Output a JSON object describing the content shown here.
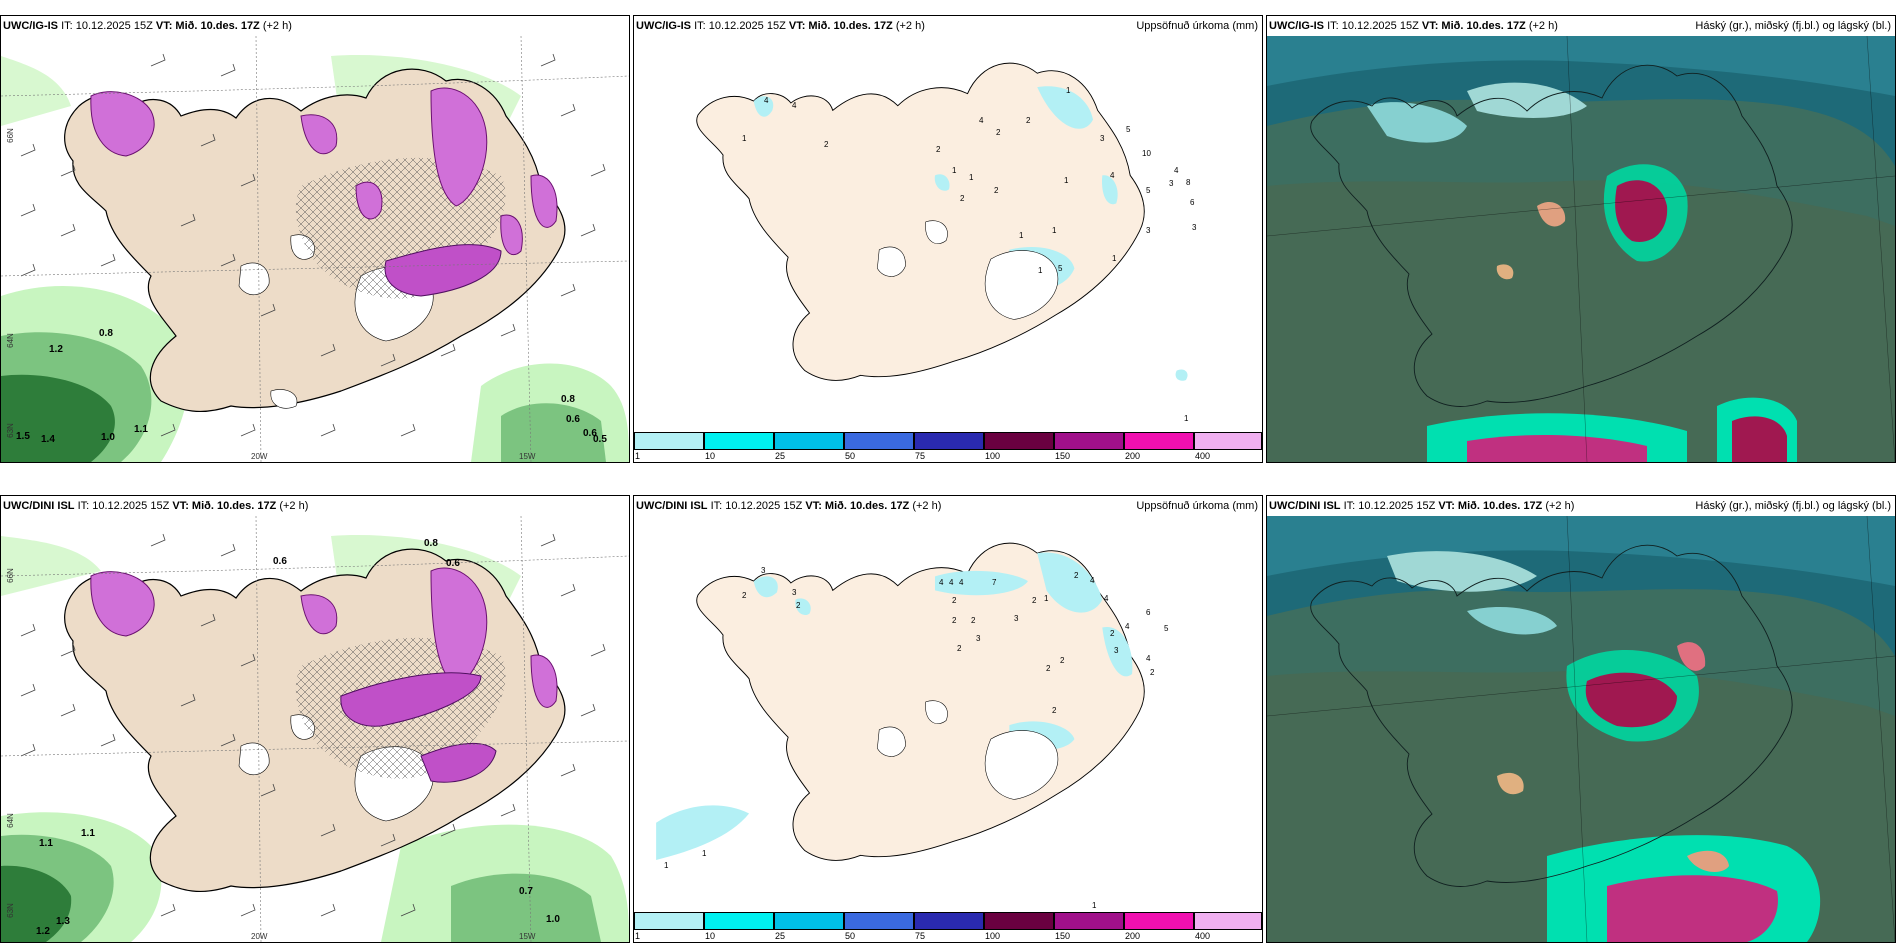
{
  "rows": [
    {
      "model": "UWC/IG-IS",
      "panels": [
        {
          "kind": "wind-precip",
          "title_model": "UWC/IG-IS",
          "title_it": "IT: 10.12.2025 15Z",
          "title_vt": "VT: Mið. 10.des. 17Z",
          "title_lead": "(+2 h)",
          "right_title": ""
        },
        {
          "kind": "accum",
          "title_model": "UWC/IG-IS",
          "title_it": "IT: 10.12.2025 15Z",
          "title_vt": "VT: Mið. 10.des. 17Z",
          "title_lead": "(+2 h)",
          "right_title": "Uppsöfnuð úrkoma (mm)"
        },
        {
          "kind": "cloud",
          "title_model": "UWC/IG-IS",
          "title_it": "IT: 10.12.2025 15Z",
          "title_vt": "VT: Mið. 10.des. 17Z",
          "title_lead": "(+2 h)",
          "right_title": "Háský (gr.), miðský (fj.bl.) og lágský (bl.)"
        }
      ],
      "accum_labels": [
        "4",
        "4",
        "1",
        "2",
        "2",
        "1",
        "1",
        "2",
        "2",
        "4",
        "2",
        "2",
        "1",
        "1",
        "3",
        "4",
        "5",
        "10",
        "3",
        "4",
        "8",
        "5",
        "6",
        "3",
        "3",
        "1",
        "1",
        "1",
        "1",
        "5",
        "1"
      ]
    },
    {
      "model": "UWC/DINI ISL",
      "panels": [
        {
          "kind": "wind-precip",
          "title_model": "UWC/DINI ISL",
          "title_it": "IT: 10.12.2025 15Z",
          "title_vt": "VT: Mið. 10.des. 17Z",
          "title_lead": "(+2 h)",
          "right_title": ""
        },
        {
          "kind": "accum",
          "title_model": "UWC/DINI ISL",
          "title_it": "IT: 10.12.2025 15Z",
          "title_vt": "VT: Mið. 10.des. 17Z",
          "title_lead": "(+2 h)",
          "right_title": "Uppsöfnuð úrkoma (mm)"
        },
        {
          "kind": "cloud",
          "title_model": "UWC/DINI ISL",
          "title_it": "IT: 10.12.2025 15Z",
          "title_vt": "VT: Mið. 10.des. 17Z",
          "title_lead": "(+2 h)",
          "right_title": "Háský (gr.), miðský (fj.bl.) og lágský (bl.)"
        }
      ],
      "accum_labels": [
        "3",
        "2",
        "3",
        "2",
        "4",
        "4",
        "4",
        "7",
        "2",
        "2",
        "2",
        "2",
        "1",
        "2",
        "3",
        "3",
        "2",
        "4",
        "4",
        "6",
        "2",
        "4",
        "5",
        "3",
        "4",
        "2",
        "2",
        "2",
        "2",
        "1",
        "1",
        "1"
      ]
    }
  ],
  "colorbar": {
    "labels": [
      "1",
      "10",
      "25",
      "50",
      "75",
      "100",
      "150",
      "200",
      "400"
    ],
    "colors": [
      "#b3f0f5",
      "#00f0f0",
      "#00c0e8",
      "#3a6ae0",
      "#2a2ab0",
      "#6a0040",
      "#a0108a",
      "#f010b0",
      "#f0b0f0"
    ]
  },
  "axis_labels": {
    "lon_20w": "20W",
    "lon_15w": "15W",
    "lat_66n": "66N",
    "lat_64n": "64N",
    "lat_63n": "63N"
  },
  "precip_values_top": [
    "0.8",
    "1.2",
    "1.5",
    "1.4",
    "1.0",
    "1.1",
    "0.8",
    "0.6",
    "0.5",
    "0.6"
  ],
  "precip_values_bottom": [
    "1.1",
    "1.1",
    "1.3",
    "1.2",
    "0.7",
    "1.0",
    "0.8",
    "0.6",
    "0.6"
  ]
}
